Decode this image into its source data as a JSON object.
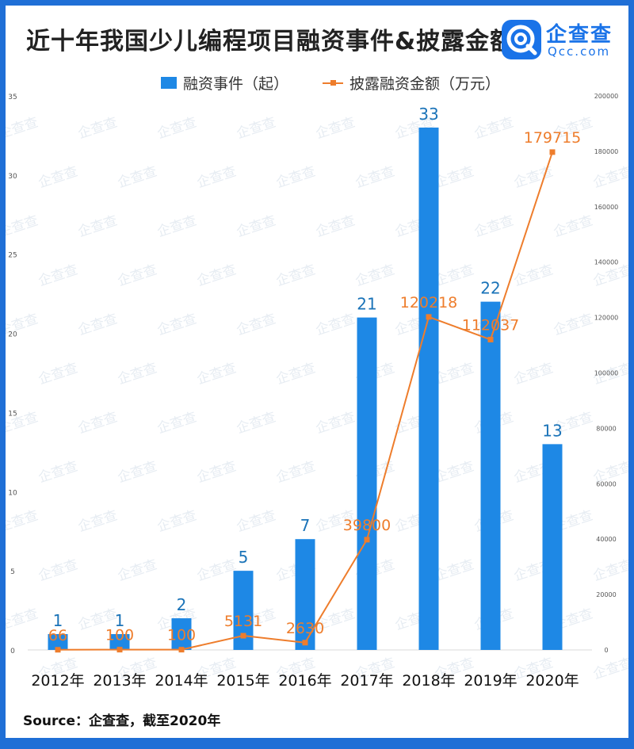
{
  "title": "近十年我国少儿编程项目融资事件&披露金额",
  "logo": {
    "cn": "企查查",
    "en": "Qcc.com"
  },
  "source": "Source：企查查，截至2020年",
  "watermark": "企查查",
  "colors": {
    "bar": "#1e88e5",
    "line": "#ee7d2c",
    "bar_label": "#1a73b8",
    "line_label": "#ee7d2c",
    "border": "#1f6fd6"
  },
  "chart_data": {
    "type": "bar",
    "categories": [
      "2012年",
      "2013年",
      "2014年",
      "2015年",
      "2016年",
      "2017年",
      "2018年",
      "2019年",
      "2020年"
    ],
    "series": [
      {
        "name": "融资事件（起）",
        "type": "bar",
        "axis": "left",
        "values": [
          1,
          1,
          2,
          5,
          7,
          21,
          33,
          22,
          13
        ],
        "labels": [
          "1",
          "1",
          "2",
          "5",
          "7",
          "21",
          "33",
          "22",
          "13"
        ]
      },
      {
        "name": "披露融资金额（万元）",
        "type": "line",
        "axis": "right",
        "values": [
          66,
          100,
          100,
          5131,
          2630,
          39800,
          120218,
          112037,
          179715
        ],
        "labels": [
          "66",
          "100",
          "100",
          "5131",
          "2630",
          "39800",
          "120218",
          "112037",
          "179715"
        ]
      }
    ],
    "y_left": {
      "min": 0,
      "max": 35,
      "ticks": [
        "0",
        "5",
        "10",
        "15",
        "20",
        "25",
        "30",
        "35"
      ]
    },
    "y_right": {
      "min": 0,
      "max": 200000,
      "ticks": [
        "0",
        "20000",
        "40000",
        "60000",
        "80000",
        "100000",
        "120000",
        "140000",
        "160000",
        "180000",
        "200000"
      ]
    },
    "legend": "top",
    "grid": false
  }
}
